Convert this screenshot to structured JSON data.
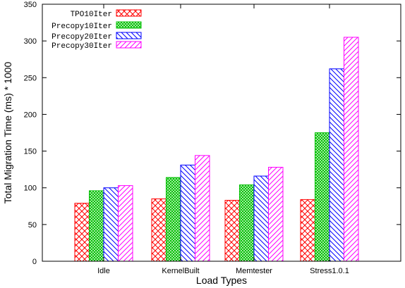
{
  "chart_data": {
    "type": "bar",
    "title": "",
    "xlabel": "Load Types",
    "ylabel": "Total Migration Time (ms) * 1000",
    "ylim": [
      0,
      350
    ],
    "yticks": [
      "0",
      "50",
      "100",
      "150",
      "200",
      "250",
      "300",
      "350"
    ],
    "categories": [
      "Idle",
      "KernelBuilt",
      "Memtester",
      "Stress1.0.1"
    ],
    "legend_position": "top-left",
    "grid": false,
    "series": [
      {
        "name": "TPO10Iter",
        "color": "#ff0000",
        "pattern": "crosshatch",
        "values": [
          79,
          85,
          83,
          84
        ]
      },
      {
        "name": "Precopy10Iter",
        "color": "#00c000",
        "pattern": "dense-crosshatch",
        "values": [
          96,
          114,
          104,
          175
        ]
      },
      {
        "name": "Precopy20Iter",
        "color": "#0000ff",
        "pattern": "diagonal-back",
        "values": [
          100,
          131,
          116,
          262
        ]
      },
      {
        "name": "Precopy30Iter",
        "color": "#ff00ff",
        "pattern": "diagonal-forward",
        "values": [
          103,
          144,
          128,
          305
        ]
      }
    ]
  }
}
